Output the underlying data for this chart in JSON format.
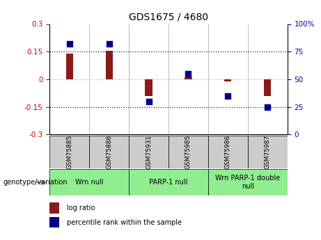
{
  "title": "GDS1675 / 4680",
  "samples": [
    "GSM75885",
    "GSM75886",
    "GSM75931",
    "GSM75985",
    "GSM75986",
    "GSM75987"
  ],
  "log_ratio": [
    0.14,
    0.156,
    -0.09,
    0.01,
    -0.012,
    -0.09
  ],
  "percentile_rank": [
    82,
    82,
    30,
    55,
    35,
    25
  ],
  "ylim_left": [
    -0.3,
    0.3
  ],
  "ylim_right": [
    0,
    100
  ],
  "yticks_left": [
    -0.3,
    -0.15,
    0,
    0.15,
    0.3
  ],
  "yticks_right": [
    0,
    25,
    50,
    75,
    100
  ],
  "bar_color": "#8B1A1A",
  "dot_color": "#00008B",
  "zero_line_color": "#FF8888",
  "dotted_line_color": "#222222",
  "groups": [
    {
      "label": "Wrn null",
      "start": 0,
      "end": 2
    },
    {
      "label": "PARP-1 null",
      "start": 2,
      "end": 4
    },
    {
      "label": "Wrn PARP-1 double\nnull",
      "start": 4,
      "end": 6
    }
  ],
  "group_fill": "#90EE90",
  "sample_box_fill": "#CCCCCC",
  "legend_bar_label": "log ratio",
  "legend_dot_label": "percentile rank within the sample",
  "genotype_label": "genotype/variation",
  "bar_width": 0.18,
  "dot_size": 28,
  "title_fontsize": 10,
  "tick_fontsize": 7.5,
  "label_fontsize": 7,
  "sample_fontsize": 6.5
}
